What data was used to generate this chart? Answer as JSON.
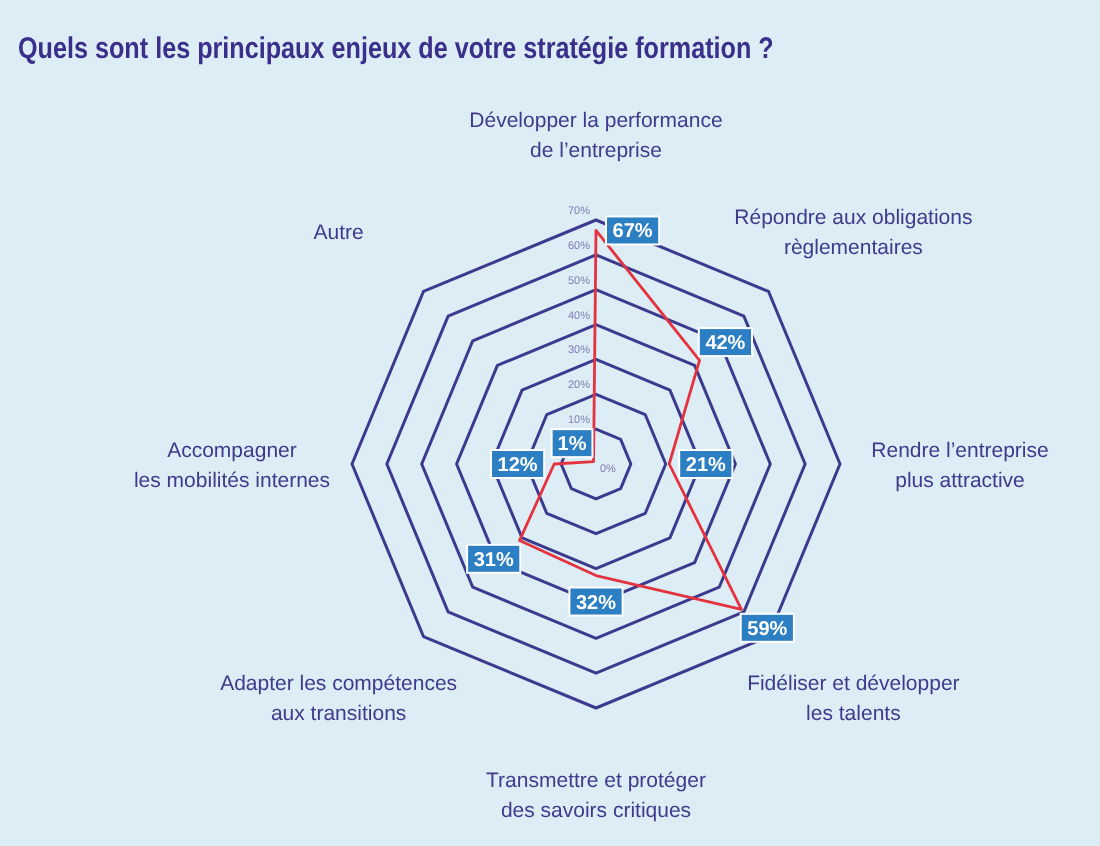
{
  "chart_data": {
    "type": "radar",
    "title": "Quels sont les principaux enjeux de votre stratégie formation ?",
    "categories": [
      "Développer la performance\nde l’entreprise",
      "Répondre aux obligations\nrèglementaires",
      "Rendre l’entreprise\nplus attractive",
      "Fidéliser et développer\nles talents",
      "Transmettre et protéger\ndes savoirs critiques",
      "Adapter les compétences\naux transitions",
      "Accompagner\nles mobilités internes",
      "Autre"
    ],
    "series": [
      {
        "color": "#e5323f",
        "values": [
          67,
          42,
          21,
          59,
          32,
          31,
          12,
          1
        ],
        "value_labels": [
          "67%",
          "42%",
          "21%",
          "59%",
          "32%",
          "31%",
          "12%",
          "1%"
        ]
      }
    ],
    "ylim": [
      0,
      70
    ],
    "yticks": [
      {
        "value": 0,
        "label": "0%"
      },
      {
        "value": 10,
        "label": "10%"
      },
      {
        "value": 20,
        "label": "20%"
      },
      {
        "value": 30,
        "label": "30%"
      },
      {
        "value": 40,
        "label": "40%"
      },
      {
        "value": 50,
        "label": "50%"
      },
      {
        "value": 60,
        "label": "60%"
      },
      {
        "value": 70,
        "label": "70%"
      }
    ],
    "grid": true
  }
}
